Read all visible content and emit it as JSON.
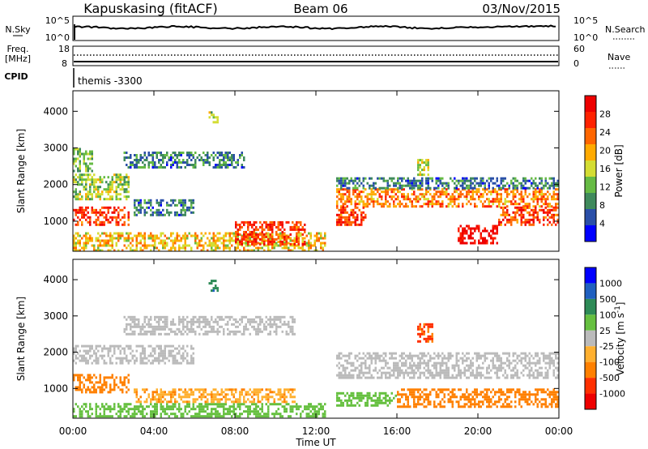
{
  "header": {
    "station": "Kapuskasing (fitACF)",
    "beam": "Beam 06",
    "date": "03/Nov/2015"
  },
  "mini_panels": {
    "nsky_label": "N.Sky",
    "nsky_ticks": [
      "10^5",
      "10^0"
    ],
    "nsearch_label": "N.Search",
    "nsearch_ticks": [
      "10^5",
      "10^0"
    ],
    "freq_label_line1": "Freq.",
    "freq_label_line2": "[MHz]",
    "freq_ticks": [
      "18",
      "8"
    ],
    "nave_label": "Nave",
    "nave_ticks": [
      "60",
      "0"
    ],
    "cpid_label": "CPID",
    "cpid_text": "themis -3300"
  },
  "colors": {
    "power_scale": [
      "#0000ff",
      "#2a4fa8",
      "#3f8a5c",
      "#66bb44",
      "#d4dd33",
      "#ffaa00",
      "#ff6600",
      "#ff2200",
      "#ee0000"
    ],
    "velocity_scale": [
      "#0000ff",
      "#2060c0",
      "#2e8b57",
      "#66c040",
      "#bbbbbb",
      "#ffb030",
      "#ff8000",
      "#ff3000",
      "#ee0000"
    ]
  },
  "chart_data": [
    {
      "type": "heatmap",
      "panel": "power",
      "ylabel": "Slant Range [km]",
      "xlabel": "",
      "yticks": [
        1000,
        2000,
        3000,
        4000
      ],
      "ylim": [
        180,
        4560
      ],
      "x_ticks": [
        "00:00",
        "04:00",
        "08:00",
        "12:00",
        "16:00",
        "20:00",
        "00:00"
      ],
      "xlim_hours": [
        0,
        24
      ],
      "colorbar_label": "Power [dB]",
      "colorbar_ticks": [
        "4",
        "8",
        "12",
        "16",
        "20",
        "24",
        "28"
      ],
      "colorbar_range": [
        0,
        32
      ],
      "regions": [
        {
          "t0": 0.0,
          "t1": 2.8,
          "r0": 900,
          "r1": 1400,
          "value": 26
        },
        {
          "t0": 0.0,
          "t1": 2.8,
          "r0": 1600,
          "r1": 2300,
          "value": 14
        },
        {
          "t0": 0.0,
          "t1": 1.0,
          "r0": 2400,
          "r1": 3000,
          "value": 12
        },
        {
          "t0": 2.5,
          "t1": 8.5,
          "r0": 2500,
          "r1": 2900,
          "value": 8
        },
        {
          "t0": 3.0,
          "t1": 6.0,
          "r0": 1200,
          "r1": 1600,
          "value": 8
        },
        {
          "t0": 6.7,
          "t1": 7.2,
          "r0": 3700,
          "r1": 4000,
          "value": 14
        },
        {
          "t0": 0.0,
          "t1": 12.5,
          "r0": 200,
          "r1": 700,
          "value": 18
        },
        {
          "t0": 8.0,
          "t1": 11.5,
          "r0": 400,
          "r1": 1000,
          "value": 26
        },
        {
          "t0": 13.0,
          "t1": 24.0,
          "r0": 1400,
          "r1": 1900,
          "value": 22
        },
        {
          "t0": 13.0,
          "t1": 14.5,
          "r0": 900,
          "r1": 1400,
          "value": 26
        },
        {
          "t0": 19.0,
          "t1": 21.0,
          "r0": 400,
          "r1": 900,
          "value": 30
        },
        {
          "t0": 21.0,
          "t1": 24.0,
          "r0": 900,
          "r1": 1400,
          "value": 26
        },
        {
          "t0": 13.0,
          "t1": 24.0,
          "r0": 1900,
          "r1": 2200,
          "value": 8
        },
        {
          "t0": 17.0,
          "t1": 17.6,
          "r0": 2300,
          "r1": 2700,
          "value": 16
        }
      ]
    },
    {
      "type": "heatmap",
      "panel": "velocity",
      "ylabel": "Slant Range [km]",
      "xlabel": "Time UT",
      "yticks": [
        1000,
        2000,
        3000,
        4000
      ],
      "ylim": [
        180,
        4560
      ],
      "x_ticks": [
        "00:00",
        "04:00",
        "08:00",
        "12:00",
        "16:00",
        "20:00",
        "00:00"
      ],
      "xlim_hours": [
        0,
        24
      ],
      "colorbar_label": "Velocity [m s^-1]",
      "colorbar_ticks": [
        "1000",
        "500",
        "100",
        "25",
        "-25",
        "-100",
        "-500",
        "-1000"
      ],
      "regions": [
        {
          "t0": 0.0,
          "t1": 2.8,
          "r0": 900,
          "r1": 1400,
          "value": -300
        },
        {
          "t0": 0.0,
          "t1": 6.0,
          "r0": 1700,
          "r1": 2200,
          "value": 0
        },
        {
          "t0": 2.5,
          "t1": 11.0,
          "r0": 2500,
          "r1": 3000,
          "value": 0
        },
        {
          "t0": 0.0,
          "t1": 12.5,
          "r0": 200,
          "r1": 600,
          "value": 60
        },
        {
          "t0": 3.0,
          "t1": 11.0,
          "r0": 600,
          "r1": 1000,
          "value": -80
        },
        {
          "t0": 13.0,
          "t1": 24.0,
          "r0": 1300,
          "r1": 2000,
          "value": 0
        },
        {
          "t0": 16.0,
          "t1": 24.0,
          "r0": 500,
          "r1": 1000,
          "value": -300
        },
        {
          "t0": 13.0,
          "t1": 16.0,
          "r0": 500,
          "r1": 900,
          "value": 60
        },
        {
          "t0": 17.0,
          "t1": 17.8,
          "r0": 2300,
          "r1": 2800,
          "value": -600
        },
        {
          "t0": 6.7,
          "t1": 7.2,
          "r0": 3700,
          "r1": 4000,
          "value": 400
        }
      ]
    }
  ]
}
